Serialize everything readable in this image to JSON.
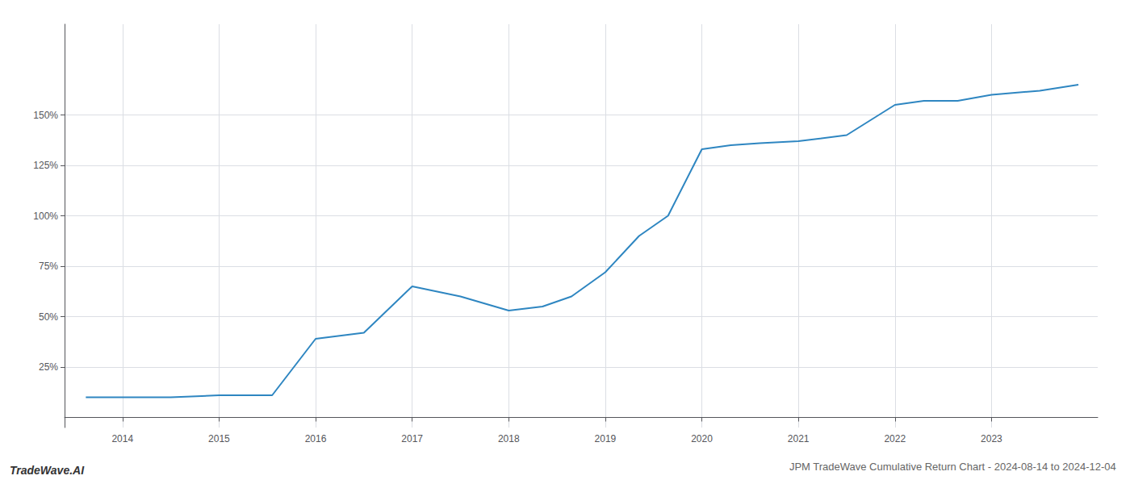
{
  "chart_data": {
    "type": "line",
    "title": "JPM TradeWave Cumulative Return Chart - 2024-08-14 to 2024-12-04",
    "annotations": [
      "TradeWave.AI"
    ],
    "x": [
      2013.62,
      2014.0,
      2014.5,
      2015.0,
      2015.55,
      2016.0,
      2016.5,
      2017.0,
      2017.5,
      2018.0,
      2018.35,
      2018.65,
      2019.0,
      2019.35,
      2019.65,
      2020.0,
      2020.3,
      2020.6,
      2021.0,
      2021.5,
      2022.0,
      2022.3,
      2022.65,
      2023.0,
      2023.5,
      2023.9
    ],
    "values": [
      10,
      10,
      10,
      11,
      11,
      39,
      42,
      65,
      60,
      53,
      55,
      60,
      72,
      90,
      100,
      133,
      135,
      136,
      137,
      140,
      155,
      157,
      157,
      160,
      162,
      165
    ],
    "color": "#2e86c1",
    "xlim": [
      2013.4,
      2024.1
    ],
    "xticks": [
      2014,
      2015,
      2016,
      2017,
      2018,
      2019,
      2020,
      2021,
      2022,
      2023
    ],
    "ylim": [
      -5,
      195
    ],
    "yticks": [
      {
        "value": 25,
        "label": "25%"
      },
      {
        "value": 50,
        "label": "50%"
      },
      {
        "value": 75,
        "label": "75%"
      },
      {
        "value": 100,
        "label": "100%"
      },
      {
        "value": 125,
        "label": "125%"
      },
      {
        "value": 150,
        "label": "150%"
      }
    ],
    "grid": true
  }
}
